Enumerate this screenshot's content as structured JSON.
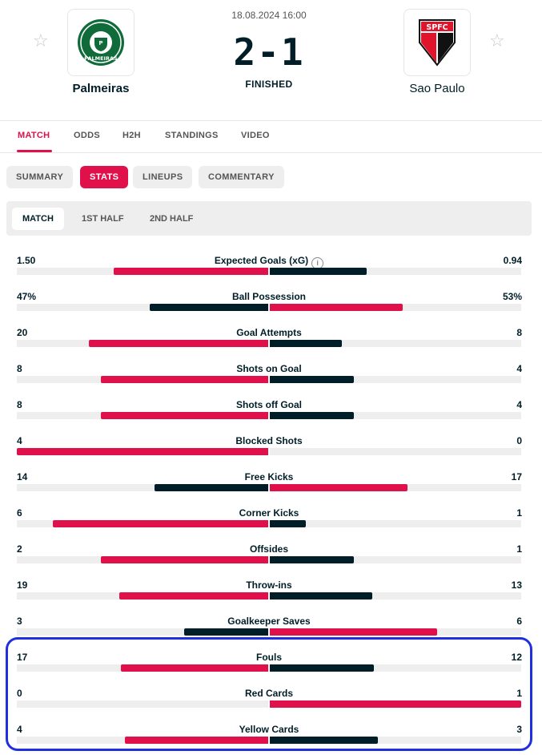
{
  "match": {
    "datetime": "18.08.2024 16:00",
    "score": "2-1",
    "status": "FINISHED",
    "home_team": "Palmeiras",
    "away_team": "Sao Paulo",
    "home_logo_text": "PALMEIRAS",
    "away_logo_text": "SPFC"
  },
  "icons": {
    "favorite": "star-icon",
    "info": "info-icon"
  },
  "main_tabs": [
    "MATCH",
    "ODDS",
    "H2H",
    "STANDINGS",
    "VIDEO"
  ],
  "sub_tabs": [
    "SUMMARY",
    "STATS",
    "LINEUPS",
    "COMMENTARY"
  ],
  "period_tabs": [
    "MATCH",
    "1ST HALF",
    "2ND HALF"
  ],
  "colors": {
    "accent": "#e0104a",
    "dark": "#001e28",
    "track": "#eeeeee",
    "highlight": "#2030e0"
  },
  "stats": [
    {
      "name": "Expected Goals (xG)",
      "home": "1.50",
      "away": "0.94",
      "info": true
    },
    {
      "name": "Ball Possession",
      "home": "47%",
      "away": "53%"
    },
    {
      "name": "Goal Attempts",
      "home": "20",
      "away": "8"
    },
    {
      "name": "Shots on Goal",
      "home": "8",
      "away": "4"
    },
    {
      "name": "Shots off Goal",
      "home": "8",
      "away": "4"
    },
    {
      "name": "Blocked Shots",
      "home": "4",
      "away": "0"
    },
    {
      "name": "Free Kicks",
      "home": "14",
      "away": "17"
    },
    {
      "name": "Corner Kicks",
      "home": "6",
      "away": "1"
    },
    {
      "name": "Offsides",
      "home": "2",
      "away": "1"
    },
    {
      "name": "Throw-ins",
      "home": "19",
      "away": "13"
    },
    {
      "name": "Goalkeeper Saves",
      "home": "3",
      "away": "6"
    },
    {
      "name": "Fouls",
      "home": "17",
      "away": "12"
    },
    {
      "name": "Red Cards",
      "home": "0",
      "away": "1"
    },
    {
      "name": "Yellow Cards",
      "home": "4",
      "away": "3"
    }
  ]
}
